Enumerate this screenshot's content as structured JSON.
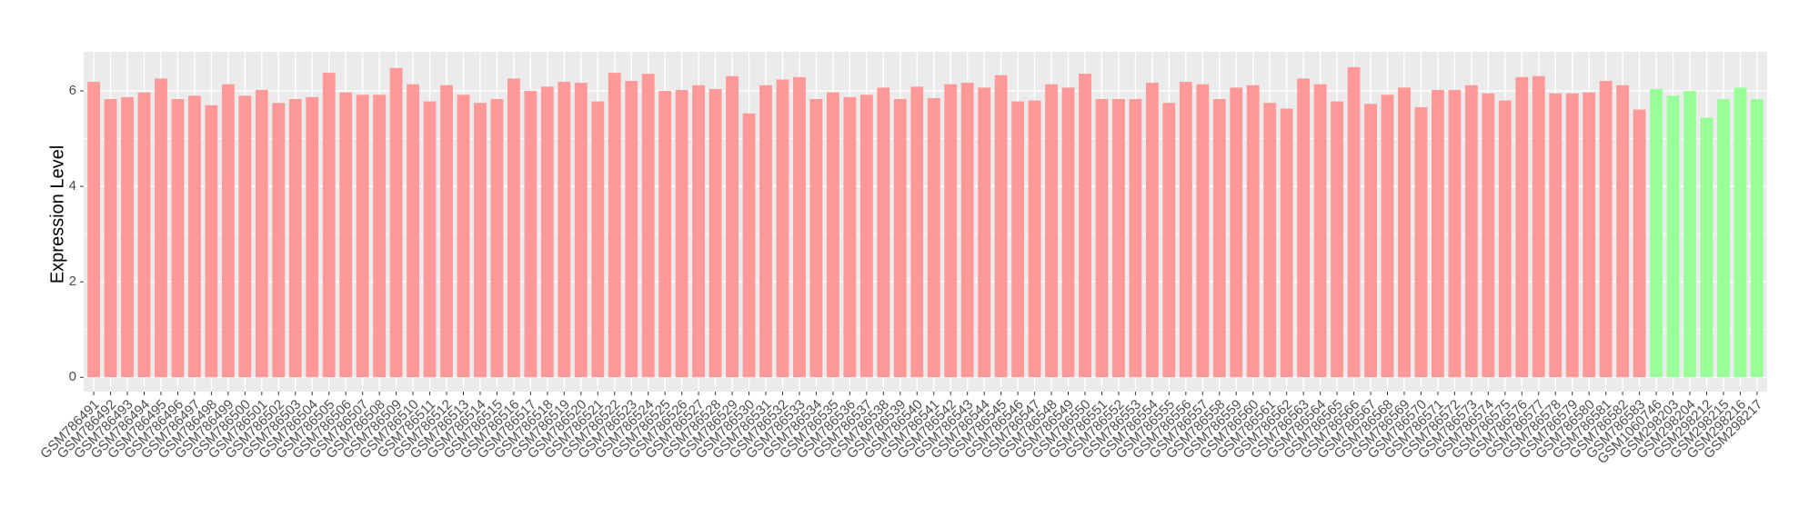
{
  "chart_data": {
    "type": "bar",
    "y_label": "Expression Level",
    "categories": [
      "GSM786491",
      "GSM786492",
      "GSM786493",
      "GSM786494",
      "GSM786495",
      "GSM786496",
      "GSM786497",
      "GSM786498",
      "GSM786499",
      "GSM786500",
      "GSM786501",
      "GSM786502",
      "GSM786503",
      "GSM786504",
      "GSM786505",
      "GSM786506",
      "GSM786507",
      "GSM786508",
      "GSM786509",
      "GSM786510",
      "GSM786511",
      "GSM786512",
      "GSM786513",
      "GSM786514",
      "GSM786515",
      "GSM786516",
      "GSM786517",
      "GSM786518",
      "GSM786519",
      "GSM786520",
      "GSM786521",
      "GSM786522",
      "GSM786523",
      "GSM786524",
      "GSM786525",
      "GSM786526",
      "GSM786527",
      "GSM786528",
      "GSM786529",
      "GSM786530",
      "GSM786531",
      "GSM786532",
      "GSM786533",
      "GSM786534",
      "GSM786535",
      "GSM786536",
      "GSM786537",
      "GSM786538",
      "GSM786539",
      "GSM786540",
      "GSM786541",
      "GSM786542",
      "GSM786543",
      "GSM786544",
      "GSM786545",
      "GSM786546",
      "GSM786547",
      "GSM786548",
      "GSM786549",
      "GSM786550",
      "GSM786551",
      "GSM786552",
      "GSM786553",
      "GSM786554",
      "GSM786555",
      "GSM786556",
      "GSM786557",
      "GSM786558",
      "GSM786559",
      "GSM786560",
      "GSM786561",
      "GSM786562",
      "GSM786563",
      "GSM786564",
      "GSM786565",
      "GSM786566",
      "GSM786567",
      "GSM786568",
      "GSM786569",
      "GSM786570",
      "GSM786571",
      "GSM786572",
      "GSM786573",
      "GSM786574",
      "GSM786575",
      "GSM786576",
      "GSM786577",
      "GSM786578",
      "GSM786579",
      "GSM786580",
      "GSM786581",
      "GSM786582",
      "GSM786583",
      "GSM1060746",
      "GSM298203",
      "GSM298204",
      "GSM298212",
      "GSM298215",
      "GSM298216",
      "GSM298217"
    ],
    "values": [
      6.19,
      5.83,
      5.87,
      5.97,
      6.26,
      5.83,
      5.9,
      5.7,
      6.14,
      5.9,
      6.02,
      5.75,
      5.83,
      5.87,
      6.38,
      5.97,
      5.92,
      5.92,
      6.48,
      6.14,
      5.78,
      6.12,
      5.92,
      5.75,
      5.83,
      6.26,
      6.0,
      6.09,
      6.19,
      6.17,
      5.78,
      6.38,
      6.21,
      6.36,
      6.0,
      6.02,
      6.12,
      6.04,
      6.31,
      5.53,
      6.12,
      6.24,
      6.29,
      5.83,
      5.97,
      5.87,
      5.92,
      6.07,
      5.83,
      6.09,
      5.85,
      6.14,
      6.17,
      6.07,
      6.33,
      5.78,
      5.8,
      6.14,
      6.07,
      6.36,
      5.83,
      5.83,
      5.83,
      6.17,
      5.75,
      6.19,
      6.14,
      5.83,
      6.07,
      6.12,
      5.75,
      5.63,
      6.26,
      6.14,
      5.78,
      6.5,
      5.73,
      5.92,
      6.07,
      5.66,
      6.02,
      6.02,
      6.12,
      5.95,
      5.8,
      6.29,
      6.31,
      5.95,
      5.95,
      5.97,
      6.21,
      6.12,
      5.61,
      6.04,
      5.9,
      6.0,
      5.44,
      5.83,
      6.07,
      5.83
    ],
    "bar_colors": [
      "#ff9999",
      "#ff9999",
      "#ff9999",
      "#ff9999",
      "#ff9999",
      "#ff9999",
      "#ff9999",
      "#ff9999",
      "#ff9999",
      "#ff9999",
      "#ff9999",
      "#ff9999",
      "#ff9999",
      "#ff9999",
      "#ff9999",
      "#ff9999",
      "#ff9999",
      "#ff9999",
      "#ff9999",
      "#ff9999",
      "#ff9999",
      "#ff9999",
      "#ff9999",
      "#ff9999",
      "#ff9999",
      "#ff9999",
      "#ff9999",
      "#ff9999",
      "#ff9999",
      "#ff9999",
      "#ff9999",
      "#ff9999",
      "#ff9999",
      "#ff9999",
      "#ff9999",
      "#ff9999",
      "#ff9999",
      "#ff9999",
      "#ff9999",
      "#ff9999",
      "#ff9999",
      "#ff9999",
      "#ff9999",
      "#ff9999",
      "#ff9999",
      "#ff9999",
      "#ff9999",
      "#ff9999",
      "#ff9999",
      "#ff9999",
      "#ff9999",
      "#ff9999",
      "#ff9999",
      "#ff9999",
      "#ff9999",
      "#ff9999",
      "#ff9999",
      "#ff9999",
      "#ff9999",
      "#ff9999",
      "#ff9999",
      "#ff9999",
      "#ff9999",
      "#ff9999",
      "#ff9999",
      "#ff9999",
      "#ff9999",
      "#ff9999",
      "#ff9999",
      "#ff9999",
      "#ff9999",
      "#ff9999",
      "#ff9999",
      "#ff9999",
      "#ff9999",
      "#ff9999",
      "#ff9999",
      "#ff9999",
      "#ff9999",
      "#ff9999",
      "#ff9999",
      "#ff9999",
      "#ff9999",
      "#ff9999",
      "#ff9999",
      "#ff9999",
      "#ff9999",
      "#ff9999",
      "#ff9999",
      "#ff9999",
      "#ff9999",
      "#ff9999",
      "#ff9999",
      "#99ff99",
      "#99ff99",
      "#99ff99",
      "#99ff99",
      "#99ff99",
      "#99ff99",
      "#99ff99"
    ],
    "ylim": [
      -0.3,
      6.82
    ],
    "yticks": [
      0,
      2,
      4,
      6
    ],
    "minor_yticks": [
      1,
      3,
      5
    ],
    "grid": true
  }
}
